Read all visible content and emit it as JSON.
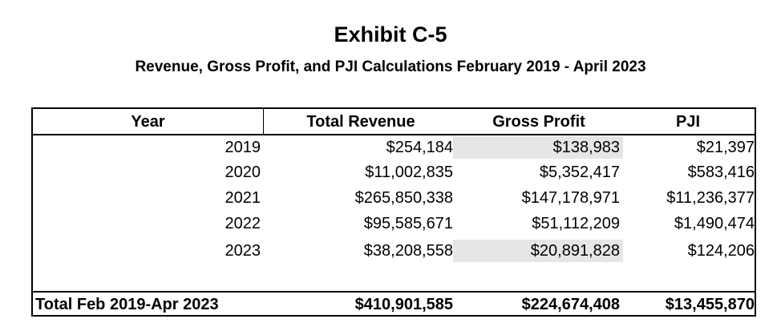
{
  "title": "Exhibit C-5",
  "subtitle": "Revenue, Gross Profit, and PJI Calculations February 2019 - April 2023",
  "table": {
    "headers": [
      "Year",
      "Total Revenue",
      "Gross Profit",
      "PJI"
    ],
    "rows": [
      {
        "year": "2019",
        "total_revenue": "$254,184",
        "gross_profit": "$138,983",
        "pji": "$21,397"
      },
      {
        "year": "2020",
        "total_revenue": "$11,002,835",
        "gross_profit": "$5,352,417",
        "pji": "$583,416"
      },
      {
        "year": "2021",
        "total_revenue": "$265,850,338",
        "gross_profit": "$147,178,971",
        "pji": "$11,236,377"
      },
      {
        "year": "2022",
        "total_revenue": "$95,585,671",
        "gross_profit": "$51,112,209",
        "pji": "$1,490,474"
      },
      {
        "year": "2023",
        "total_revenue": "$38,208,558",
        "gross_profit": "$20,891,828",
        "pji": "$124,206"
      }
    ],
    "total": {
      "label": "Total Feb 2019-Apr 2023",
      "total_revenue": "$410,901,585",
      "gross_profit": "$224,674,408",
      "pji": "$13,455,870"
    },
    "highlighted_cells": [
      "2019 Gross Profit",
      "2023 Gross Profit"
    ],
    "highlight_color": "#e6e6e6"
  }
}
